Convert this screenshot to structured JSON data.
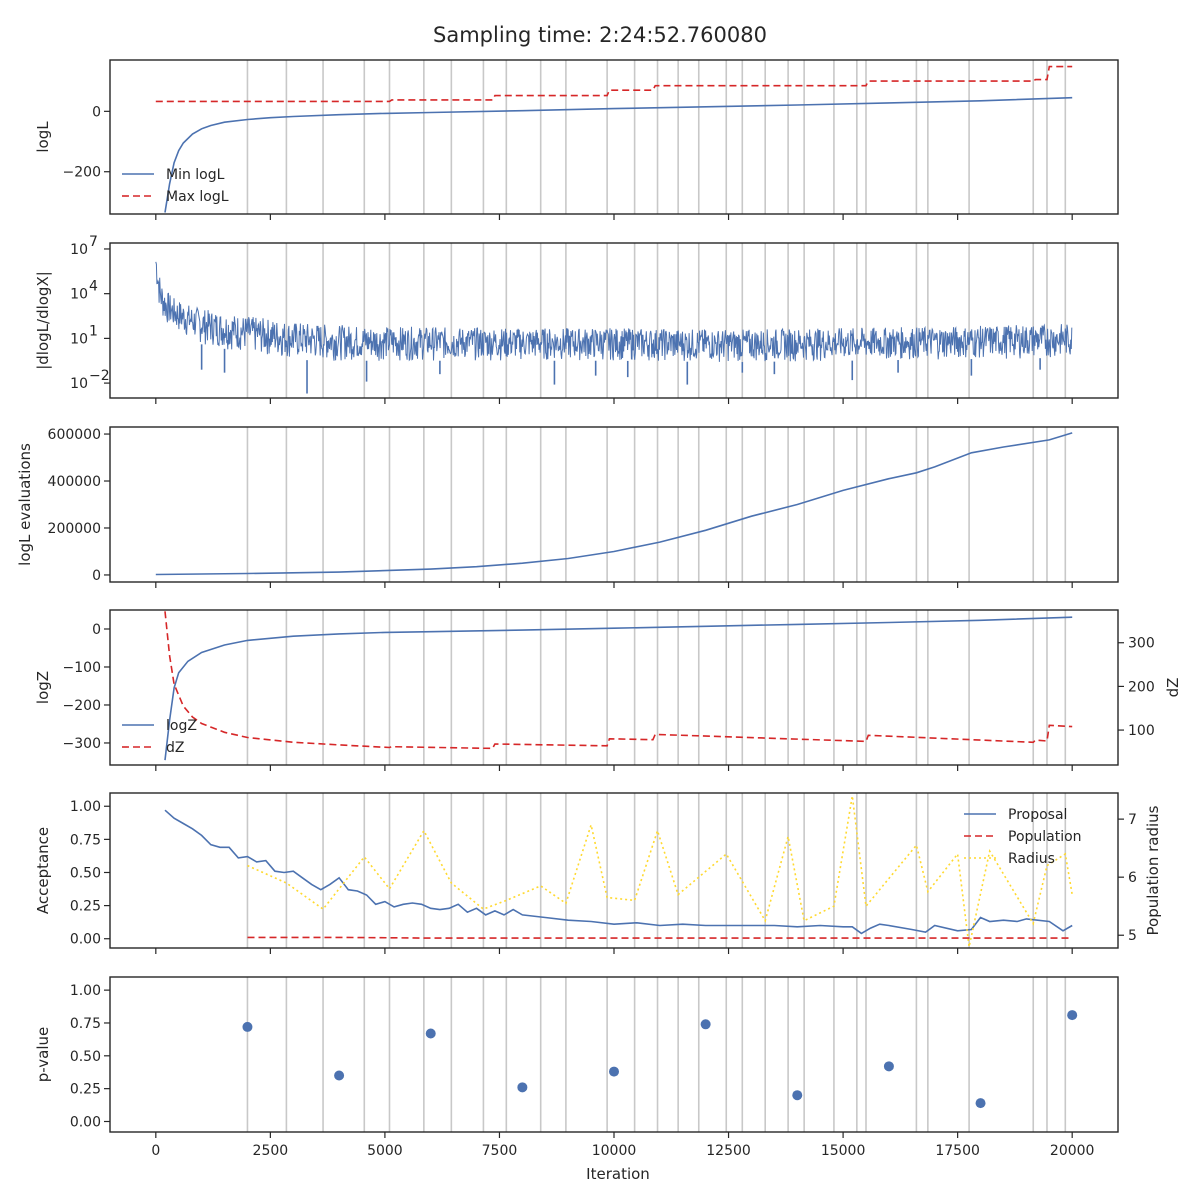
{
  "title": "Sampling time: 2:24:52.760080",
  "colors": {
    "blue": "#4c72b0",
    "red": "#d62728",
    "yellow": "#ffd92f",
    "grid": "#c8c8c8",
    "axis": "#262626"
  },
  "insertion_iterations": [
    2000,
    2850,
    3650,
    4550,
    5100,
    5850,
    6450,
    7150,
    7650,
    8400,
    8950,
    9850,
    10450,
    10950,
    11400,
    11850,
    12450,
    12800,
    13300,
    13800,
    14150,
    14800,
    15300,
    15500,
    16600,
    16850,
    17750,
    19150,
    19450,
    19850
  ],
  "x_axis": {
    "label": "Iteration",
    "lim": [
      -1000,
      21000
    ],
    "ticks": [
      0,
      2500,
      5000,
      7500,
      10000,
      12500,
      15000,
      17500,
      20000
    ]
  },
  "chart_data": [
    {
      "type": "line",
      "ylabel": "logL",
      "ylim": [
        -340,
        170
      ],
      "yticks": [
        0,
        -200
      ],
      "ytick_labels": [
        "0",
        "−200"
      ],
      "legend_position": "lower-left",
      "series": [
        {
          "name": "Min logL",
          "style": "solid",
          "color": "#4c72b0",
          "x": [
            200,
            300,
            400,
            500,
            600,
            800,
            1000,
            1200,
            1500,
            2000,
            2500,
            3000,
            4000,
            5000,
            6000,
            8000,
            10000,
            12000,
            14000,
            16000,
            18000,
            20000
          ],
          "y": [
            -335,
            -240,
            -170,
            -130,
            -105,
            -75,
            -58,
            -47,
            -36,
            -27,
            -21,
            -17,
            -11,
            -7,
            -4,
            2,
            9,
            15,
            21,
            28,
            35,
            45
          ]
        },
        {
          "name": "Max logL",
          "style": "dashed",
          "color": "#d62728",
          "x": [
            0,
            5100,
            5150,
            7350,
            7400,
            9850,
            9900,
            10850,
            10900,
            15500,
            15550,
            19150,
            19200,
            19450,
            19500,
            20000
          ],
          "y": [
            33,
            33,
            38,
            38,
            52,
            52,
            70,
            70,
            85,
            85,
            100,
            100,
            105,
            105,
            148,
            148
          ]
        }
      ]
    },
    {
      "type": "line",
      "ylabel": "|dlogL/dlogX|",
      "yscale": "log",
      "ylim_log10": [
        -3.0,
        7.4
      ],
      "yticks": [
        7,
        4,
        1,
        -2
      ],
      "ytick_labels": [
        "10",
        "10",
        "10",
        "10"
      ],
      "ytick_exponents": [
        "7",
        "4",
        "1",
        "−2"
      ],
      "series": [
        {
          "name": "",
          "style": "noise",
          "color": "#4c72b0",
          "x": [
            0,
            50,
            100,
            200,
            400,
            700,
            1000,
            1500,
            2000,
            2500,
            3000,
            3500,
            4000,
            5000,
            7500,
            10000,
            12500,
            15000,
            17500,
            20000
          ],
          "upper_log10": [
            7.0,
            6.0,
            5.0,
            4.3,
            3.7,
            3.3,
            3.0,
            2.7,
            2.5,
            2.3,
            2.1,
            2.0,
            1.9,
            1.8,
            1.7,
            1.7,
            1.6,
            1.7,
            1.8,
            2.0
          ],
          "lower_log10": [
            5.0,
            3.5,
            2.5,
            2.0,
            1.5,
            1.0,
            0.6,
            0.3,
            0.0,
            -0.2,
            -0.4,
            -0.5,
            -0.5,
            -0.5,
            -0.5,
            -0.5,
            -0.6,
            -0.5,
            -0.4,
            -0.3
          ],
          "dips_x": [
            1000,
            1500,
            3300,
            4600,
            6200,
            8700,
            9600,
            10300,
            11600,
            12800,
            13500,
            15200,
            16200,
            17800,
            19300
          ],
          "dips_log10": [
            -1.1,
            -1.3,
            -2.7,
            -1.9,
            -1.4,
            -2.1,
            -1.5,
            -1.6,
            -2.1,
            -1.3,
            -1.4,
            -1.8,
            -1.3,
            -1.5,
            -1.1
          ]
        }
      ]
    },
    {
      "type": "line",
      "ylabel": "logL evaluations",
      "ylim": [
        -30000,
        630000
      ],
      "yticks": [
        0,
        200000,
        400000,
        600000
      ],
      "ytick_labels": [
        "0",
        "200000",
        "400000",
        "600000"
      ],
      "series": [
        {
          "name": "",
          "style": "solid",
          "color": "#4c72b0",
          "x": [
            0,
            2000,
            4000,
            6000,
            7000,
            8000,
            9000,
            10000,
            11000,
            12000,
            13000,
            14000,
            15000,
            16000,
            16600,
            17000,
            17800,
            18500,
            19500,
            20000
          ],
          "y": [
            2000,
            6000,
            12000,
            25000,
            35000,
            50000,
            70000,
            100000,
            140000,
            190000,
            250000,
            300000,
            360000,
            410000,
            435000,
            460000,
            520000,
            545000,
            575000,
            605000
          ]
        }
      ]
    },
    {
      "type": "line",
      "ylabel": "logZ",
      "ylabel_right": "dZ",
      "ylim": [
        -358,
        50
      ],
      "yticks": [
        0,
        -100,
        -200,
        -300
      ],
      "ytick_labels": [
        "0",
        "−100",
        "−200",
        "−300"
      ],
      "ylim_right": [
        20,
        375
      ],
      "yticks_right": [
        100,
        200,
        300
      ],
      "ytick_labels_right": [
        "100",
        "200",
        "300"
      ],
      "legend_position": "lower-left",
      "series": [
        {
          "name": "logZ",
          "style": "solid",
          "color": "#4c72b0",
          "axis": "left",
          "x": [
            200,
            300,
            400,
            500,
            700,
            1000,
            1500,
            2000,
            3000,
            4000,
            5000,
            6000,
            8000,
            10000,
            12000,
            14000,
            16000,
            18000,
            20000
          ],
          "y": [
            -345,
            -240,
            -155,
            -115,
            -85,
            -62,
            -42,
            -30,
            -19,
            -13,
            -9,
            -7,
            -3,
            2,
            7,
            12,
            17,
            23,
            31
          ]
        },
        {
          "name": "dZ",
          "style": "dashed",
          "color": "#d62728",
          "axis": "right",
          "x": [
            200,
            300,
            400,
            600,
            800,
            1000,
            1500,
            2000,
            3000,
            4000,
            5100,
            5150,
            7350,
            7400,
            9850,
            9900,
            10850,
            10900,
            15500,
            15550,
            19150,
            19200,
            19450,
            19500,
            20000
          ],
          "y": [
            372,
            270,
            205,
            155,
            130,
            115,
            95,
            83,
            72,
            66,
            60,
            62,
            58,
            68,
            64,
            80,
            78,
            90,
            74,
            88,
            72,
            77,
            75,
            111,
            108
          ]
        }
      ]
    },
    {
      "type": "line",
      "ylabel": "Acceptance",
      "ylabel_right": "Population radius",
      "ylim": [
        -0.07,
        1.1
      ],
      "yticks": [
        0.0,
        0.25,
        0.5,
        0.75,
        1.0
      ],
      "ytick_labels": [
        "0.00",
        "0.25",
        "0.50",
        "0.75",
        "1.00"
      ],
      "ylim_right": [
        4.78,
        7.45
      ],
      "yticks_right": [
        5,
        6,
        7
      ],
      "ytick_labels_right": [
        "5",
        "6",
        "7"
      ],
      "legend_position": "top-right",
      "series": [
        {
          "name": "Proposal",
          "style": "solid",
          "color": "#4c72b0",
          "axis": "left",
          "x": [
            200,
            400,
            600,
            800,
            1000,
            1200,
            1400,
            1600,
            1800,
            2000,
            2200,
            2400,
            2600,
            2800,
            3000,
            3200,
            3400,
            3600,
            3800,
            4000,
            4200,
            4400,
            4600,
            4800,
            5000,
            5200,
            5400,
            5600,
            5800,
            6000,
            6200,
            6400,
            6600,
            6800,
            7000,
            7200,
            7400,
            7600,
            7800,
            8000,
            8500,
            9000,
            9500,
            10000,
            10500,
            11000,
            11500,
            12000,
            12500,
            13000,
            13500,
            14000,
            14500,
            15000,
            15200,
            15400,
            15600,
            15800,
            16000,
            16500,
            16800,
            17000,
            17500,
            17800,
            18000,
            18200,
            18500,
            18800,
            19000,
            19500,
            19800,
            20000
          ],
          "y": [
            0.97,
            0.91,
            0.87,
            0.83,
            0.78,
            0.71,
            0.69,
            0.69,
            0.61,
            0.62,
            0.58,
            0.59,
            0.51,
            0.5,
            0.51,
            0.46,
            0.41,
            0.37,
            0.41,
            0.46,
            0.37,
            0.36,
            0.33,
            0.26,
            0.28,
            0.24,
            0.26,
            0.27,
            0.26,
            0.23,
            0.22,
            0.23,
            0.26,
            0.2,
            0.23,
            0.18,
            0.21,
            0.18,
            0.22,
            0.18,
            0.16,
            0.14,
            0.13,
            0.11,
            0.12,
            0.1,
            0.11,
            0.1,
            0.1,
            0.1,
            0.1,
            0.09,
            0.1,
            0.09,
            0.09,
            0.04,
            0.08,
            0.11,
            0.1,
            0.07,
            0.05,
            0.1,
            0.06,
            0.07,
            0.16,
            0.13,
            0.14,
            0.13,
            0.15,
            0.13,
            0.06,
            0.1
          ]
        },
        {
          "name": "Population",
          "style": "dashed",
          "color": "#d62728",
          "axis": "left",
          "x": [
            2000,
            4000,
            6000,
            8000,
            10000,
            12000,
            14000,
            16000,
            18000,
            20000
          ],
          "y": [
            0.01,
            0.01,
            0.005,
            0.005,
            0.005,
            0.005,
            0.005,
            0.005,
            0.005,
            0.005
          ]
        },
        {
          "name": "Radius",
          "style": "dotted",
          "color": "#ffd92f",
          "axis": "right",
          "x": [
            2000,
            2850,
            3650,
            4550,
            5100,
            5850,
            6450,
            7150,
            7650,
            8400,
            8950,
            9500,
            9850,
            10450,
            10950,
            11400,
            12450,
            13300,
            13800,
            14150,
            14800,
            15200,
            15500,
            16600,
            16850,
            17500,
            17750,
            18200,
            19150,
            19450,
            19850,
            20000
          ],
          "y": [
            6.2,
            5.9,
            5.45,
            6.35,
            5.8,
            6.8,
            5.9,
            5.45,
            5.6,
            5.85,
            5.55,
            6.9,
            5.65,
            5.6,
            6.8,
            5.7,
            6.4,
            5.25,
            6.7,
            5.25,
            5.5,
            7.4,
            5.5,
            6.55,
            5.75,
            6.4,
            4.8,
            6.45,
            5.2,
            6.2,
            6.4,
            5.7
          ]
        }
      ]
    },
    {
      "type": "scatter",
      "ylabel": "p-value",
      "ylim": [
        -0.08,
        1.1
      ],
      "yticks": [
        0.0,
        0.25,
        0.5,
        0.75,
        1.0
      ],
      "ytick_labels": [
        "0.00",
        "0.25",
        "0.50",
        "0.75",
        "1.00"
      ],
      "series": [
        {
          "name": "",
          "color": "#4c72b0",
          "x": [
            2000,
            4000,
            6000,
            8000,
            10000,
            12000,
            14000,
            16000,
            18000,
            20000
          ],
          "y": [
            0.72,
            0.35,
            0.67,
            0.26,
            0.38,
            0.74,
            0.2,
            0.42,
            0.14,
            0.81
          ]
        }
      ]
    }
  ]
}
